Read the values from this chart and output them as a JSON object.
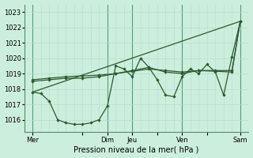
{
  "xlabel": "Pression niveau de la mer( hPa )",
  "background_color": "#cceedd",
  "grid_color": "#aaddcc",
  "line_color": "#2d5a2d",
  "ylim": [
    1015.2,
    1023.5
  ],
  "yticks": [
    1016,
    1017,
    1018,
    1019,
    1020,
    1021,
    1022,
    1023
  ],
  "xlim": [
    0,
    54
  ],
  "day_labels": [
    "Mer",
    "",
    "Dim",
    "Jeu",
    "",
    "Ven",
    "",
    "Sam"
  ],
  "day_positions": [
    2,
    14,
    20,
    26,
    32,
    38,
    44,
    52
  ],
  "vline_positions": [
    2,
    20,
    26,
    38,
    52
  ],
  "line1_x": [
    2,
    4,
    6,
    8,
    10,
    12,
    14,
    16,
    18,
    20,
    22,
    24,
    26,
    28,
    30,
    32,
    34,
    36,
    38,
    40,
    42,
    44,
    46,
    48,
    50,
    52
  ],
  "line1_y": [
    1017.8,
    1017.7,
    1017.2,
    1016.0,
    1015.8,
    1015.7,
    1015.7,
    1015.8,
    1016.0,
    1016.9,
    1019.5,
    1019.3,
    1018.8,
    1020.0,
    1019.4,
    1018.6,
    1017.6,
    1017.5,
    1018.8,
    1019.3,
    1019.0,
    1019.6,
    1019.1,
    1017.6,
    1020.1,
    1022.4
  ],
  "line2_x": [
    2,
    6,
    10,
    14,
    18,
    22,
    26,
    30,
    34,
    38,
    42,
    46,
    50,
    52
  ],
  "line2_y": [
    1018.5,
    1018.6,
    1018.7,
    1018.7,
    1018.8,
    1019.0,
    1019.2,
    1019.4,
    1019.1,
    1019.0,
    1019.2,
    1019.15,
    1019.1,
    1022.4
  ],
  "line3_x": [
    2,
    52
  ],
  "line3_y": [
    1017.8,
    1022.4
  ],
  "line4_x": [
    2,
    6,
    10,
    14,
    18,
    22,
    26,
    30,
    34,
    38,
    42,
    46,
    50,
    52
  ],
  "line4_y": [
    1018.6,
    1018.7,
    1018.8,
    1018.85,
    1018.9,
    1019.0,
    1019.15,
    1019.3,
    1019.2,
    1019.1,
    1019.2,
    1019.2,
    1019.2,
    1022.4
  ]
}
